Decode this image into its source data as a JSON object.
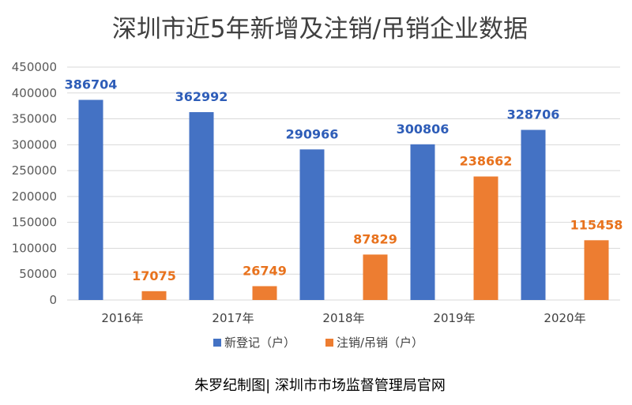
{
  "chart_data": {
    "type": "bar",
    "title": "深圳市近5年新增及注销/吊销企业数据",
    "categories": [
      "2016年",
      "2017年",
      "2018年",
      "2019年",
      "2020年"
    ],
    "series": [
      {
        "name": "新登记（户）",
        "color": "#4472C4",
        "label_color": "#2E5DB8",
        "values": [
          386704,
          362992,
          290966,
          300806,
          328706
        ]
      },
      {
        "name": "注销/吊销（户）",
        "color": "#ED7D31",
        "label_color": "#E8721D",
        "values": [
          17075,
          26749,
          87829,
          238662,
          115458
        ]
      }
    ],
    "ylim": [
      0,
      450000
    ],
    "yticks": [
      "0",
      "50000",
      "100000",
      "150000",
      "200000",
      "250000",
      "300000",
      "350000",
      "400000",
      "450000"
    ],
    "grid": true,
    "legend_position": "bottom",
    "xlabel": "",
    "ylabel": ""
  },
  "source_note": "朱罗纪制图| 深圳市市场监督管理局官网"
}
